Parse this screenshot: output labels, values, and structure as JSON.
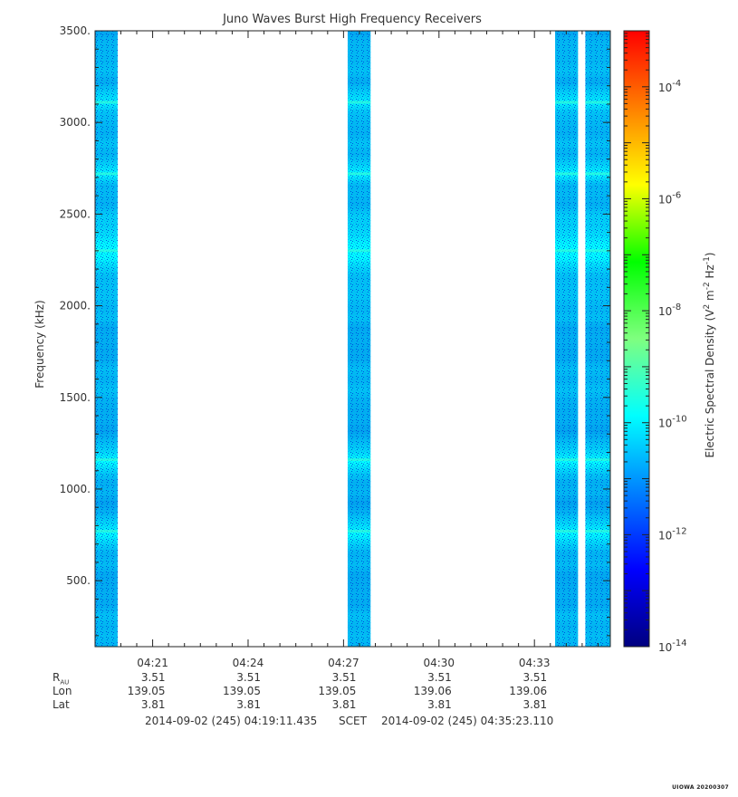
{
  "chart_data": {
    "type": "heatmap",
    "title": "Juno Waves Burst High Frequency Receivers",
    "ylabel": "Frequency (kHz)",
    "ylim": [
      140,
      3500
    ],
    "y_ticks": [
      "500.",
      "1000.",
      "1500.",
      "2000.",
      "2500.",
      "3000.",
      "3500."
    ],
    "y_tick_values": [
      500,
      1000,
      1500,
      2000,
      2500,
      3000,
      3500
    ],
    "x_start": "04:19:11.435",
    "x_end": "04:35:23.110",
    "x_ticks": [
      "04:21",
      "04:24",
      "04:27",
      "04:30",
      "04:33"
    ],
    "x_tick_values_min": [
      21,
      24,
      27,
      30,
      33
    ],
    "data_intervals_min": [
      [
        19.19,
        19.9
      ],
      [
        27.13,
        27.85
      ],
      [
        33.65,
        34.37
      ],
      [
        34.6,
        35.38
      ]
    ],
    "emission_bands_khz": [
      770,
      1160,
      2300,
      2720,
      3110
    ],
    "colorbar": {
      "label": "Electric Spectral Density (V² m⁻² Hz⁻¹)",
      "label_parts": {
        "base": "Electric Spectral Density (V",
        "sup1": "2",
        "mid1": " m",
        "sup2": "-2",
        "mid2": " Hz",
        "sup3": "-1",
        "end": ")"
      },
      "scale": "log",
      "range": [
        1e-14,
        0.001
      ],
      "ticks": [
        {
          "base": "10",
          "exp": "-4",
          "value": 0.0001
        },
        {
          "base": "10",
          "exp": "-6",
          "value": 1e-06
        },
        {
          "base": "10",
          "exp": "-8",
          "value": 1e-08
        },
        {
          "base": "10",
          "exp": "-10",
          "value": 1e-10
        },
        {
          "base": "10",
          "exp": "-12",
          "value": 1e-12
        },
        {
          "base": "10",
          "exp": "-14",
          "value": 1e-14
        }
      ],
      "colors": [
        "#00007f",
        "#0000ff",
        "#007fff",
        "#00ffff",
        "#7fff7f",
        "#00ff00",
        "#ffff00",
        "#ff7f00",
        "#ff0000"
      ]
    }
  },
  "ephemeris": {
    "r_label": "R",
    "r_sub": "AU",
    "lon_label": "Lon",
    "lat_label": "Lat",
    "r_values": [
      "3.51",
      "3.51",
      "3.51",
      "3.51",
      "3.51"
    ],
    "lon_values": [
      "139.05",
      "139.05",
      "139.05",
      "139.06",
      "139.06"
    ],
    "lat_values": [
      "3.81",
      "3.81",
      "3.81",
      "3.81",
      "3.81"
    ]
  },
  "time_range": {
    "start": "2014-09-02 (245) 04:19:11.435",
    "mid": "SCET",
    "end": "2014-09-02 (245) 04:35:23.110"
  },
  "stamp": "UIOWA 20200307"
}
